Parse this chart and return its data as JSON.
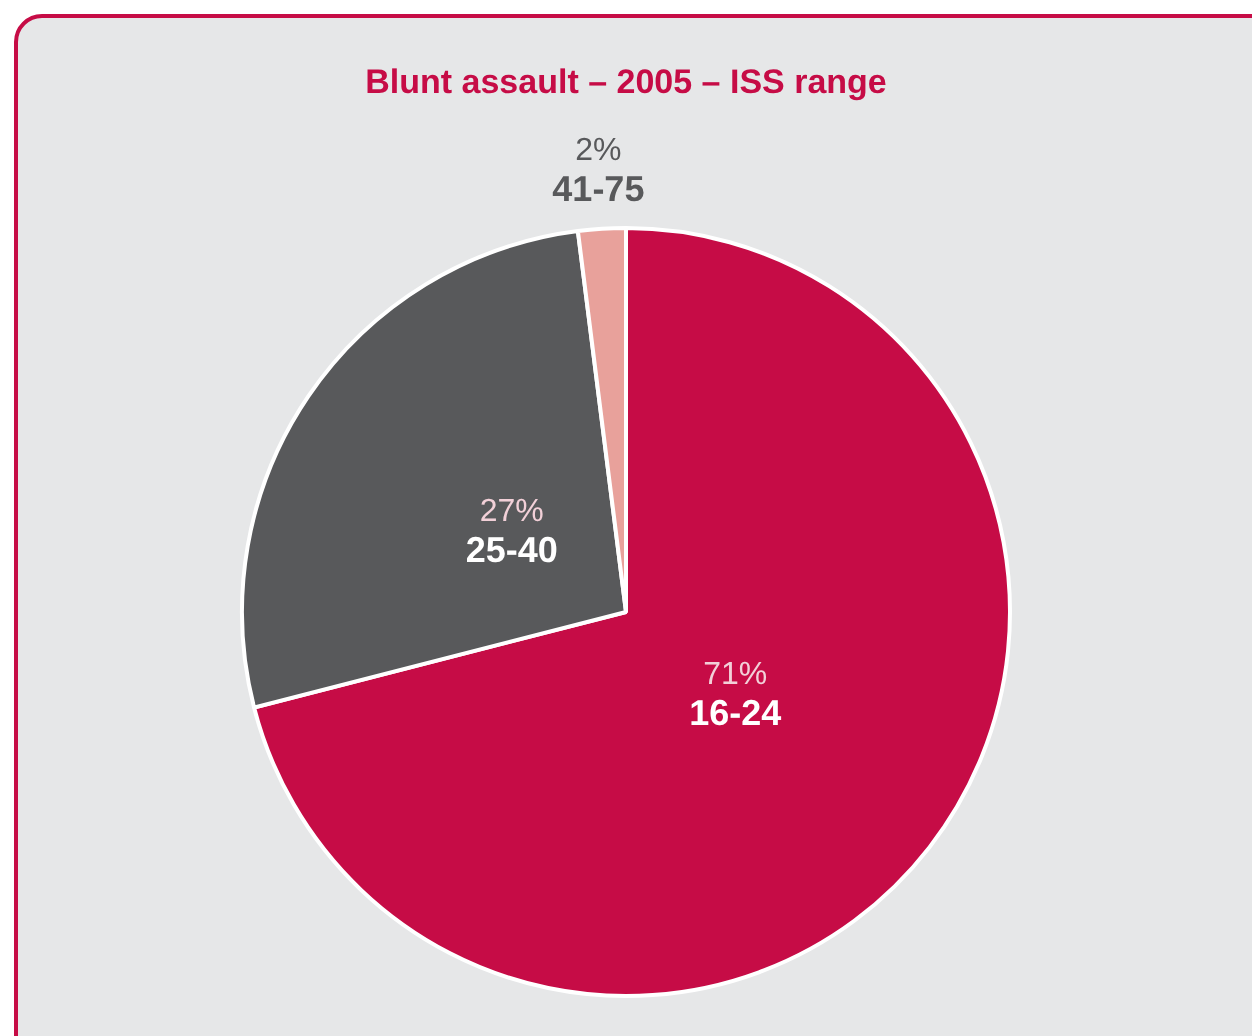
{
  "chart_data": {
    "type": "pie",
    "title": "Blunt assault – 2005 – ISS range",
    "categories": [
      "16-24",
      "25-40",
      "41-75"
    ],
    "values": [
      71,
      27,
      2
    ],
    "value_labels": [
      "71%",
      "27%",
      "2%"
    ],
    "colors": [
      "#c60c46",
      "#58595b",
      "#e8a19b"
    ],
    "legend": false
  }
}
